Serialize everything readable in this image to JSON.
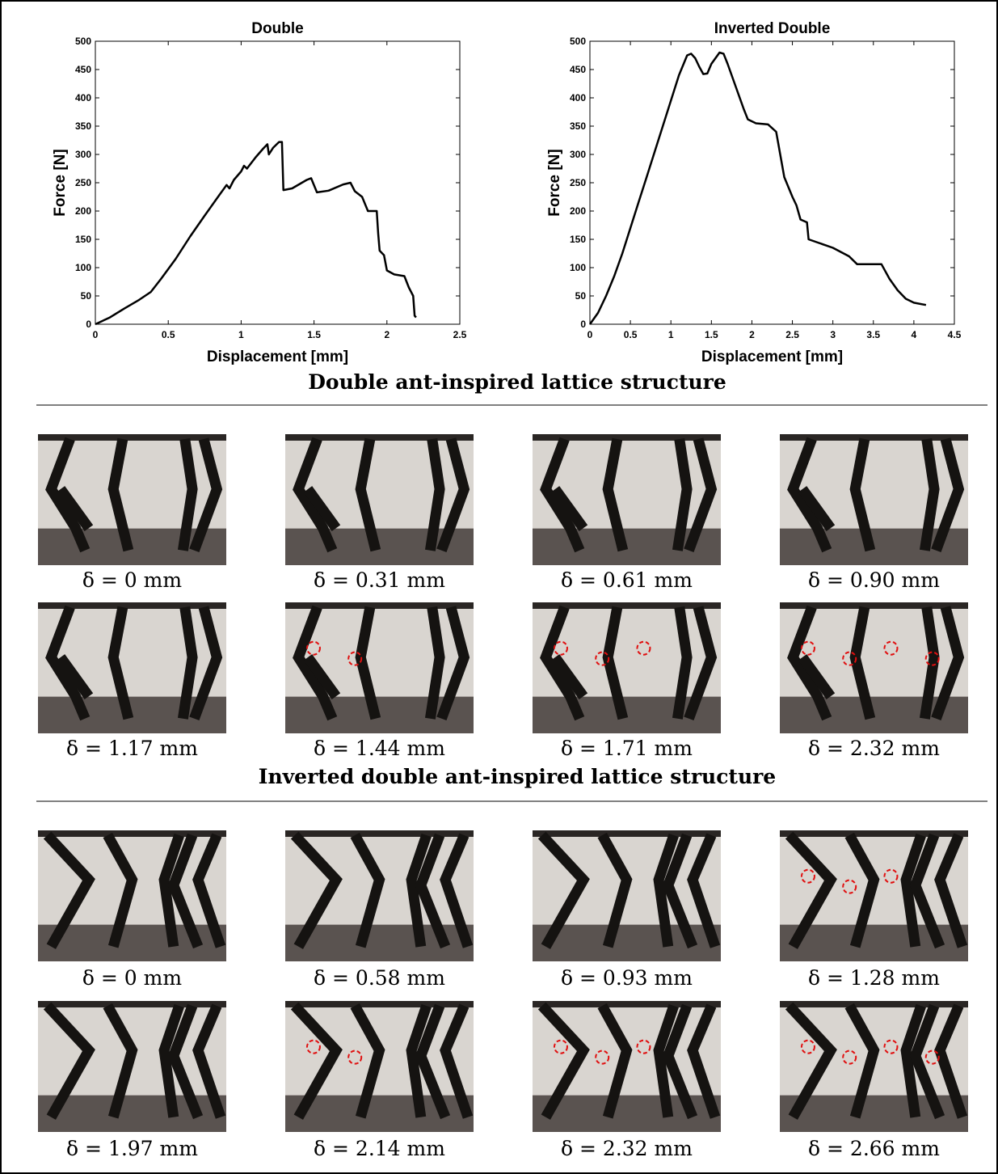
{
  "chart_data": [
    {
      "type": "line",
      "title": "Double",
      "xlabel": "Displacement [mm]",
      "ylabel": "Force [N]",
      "color": "#000000",
      "x": [
        0,
        0.1,
        0.2,
        0.3,
        0.38,
        0.45,
        0.55,
        0.65,
        0.75,
        0.85,
        0.9,
        0.92,
        0.95,
        1.0,
        1.02,
        1.04,
        1.1,
        1.15,
        1.18,
        1.19,
        1.22,
        1.26,
        1.28,
        1.29,
        1.35,
        1.45,
        1.48,
        1.52,
        1.6,
        1.7,
        1.75,
        1.78,
        1.83,
        1.87,
        1.93,
        1.94,
        1.95,
        1.98,
        2.0,
        2.05,
        2.12,
        2.15,
        2.18,
        2.19,
        2.2
      ],
      "values": [
        0,
        12,
        28,
        43,
        57,
        80,
        115,
        155,
        192,
        228,
        246,
        240,
        255,
        270,
        280,
        275,
        295,
        310,
        318,
        300,
        312,
        322,
        322,
        237,
        240,
        255,
        258,
        233,
        236,
        247,
        250,
        235,
        225,
        200,
        200,
        160,
        130,
        122,
        95,
        88,
        85,
        65,
        50,
        15,
        12
      ],
      "xlim": [
        0,
        2.5
      ],
      "xticks": [
        0,
        0.5,
        1,
        1.5,
        2,
        2.5
      ],
      "ylim": [
        0,
        500
      ],
      "yticks": [
        0,
        50,
        100,
        150,
        200,
        250,
        300,
        350,
        400,
        450,
        500
      ]
    },
    {
      "type": "line",
      "title": "Inverted Double",
      "xlabel": "Displacement [mm]",
      "ylabel": "Force [N]",
      "color": "#000000",
      "x": [
        0,
        0.1,
        0.2,
        0.3,
        0.4,
        0.5,
        0.6,
        0.7,
        0.8,
        0.9,
        1.0,
        1.1,
        1.2,
        1.25,
        1.3,
        1.35,
        1.4,
        1.45,
        1.5,
        1.6,
        1.65,
        1.7,
        1.8,
        1.9,
        1.95,
        2.05,
        2.2,
        2.3,
        2.35,
        2.4,
        2.5,
        2.55,
        2.6,
        2.68,
        2.7,
        2.8,
        3.0,
        3.2,
        3.3,
        3.6,
        3.7,
        3.8,
        3.9,
        4.0,
        4.15
      ],
      "values": [
        0,
        20,
        50,
        85,
        125,
        170,
        215,
        260,
        305,
        350,
        395,
        440,
        475,
        478,
        470,
        455,
        442,
        443,
        460,
        480,
        478,
        460,
        420,
        380,
        362,
        355,
        353,
        340,
        300,
        260,
        225,
        210,
        185,
        180,
        150,
        145,
        135,
        120,
        106,
        106,
        80,
        60,
        45,
        38,
        34
      ],
      "xlim": [
        0,
        4.5
      ],
      "xticks": [
        0,
        0.5,
        1,
        1.5,
        2,
        2.5,
        3,
        3.5,
        4,
        4.5
      ],
      "ylim": [
        0,
        500
      ],
      "yticks": [
        0,
        50,
        100,
        150,
        200,
        250,
        300,
        350,
        400,
        450,
        500
      ]
    }
  ],
  "sections": [
    {
      "title": "Double ant-inspired lattice structure",
      "captions": [
        "δ = 0 mm",
        "δ = 0.31 mm",
        "δ = 0.61 mm",
        "δ = 0.90 mm",
        "δ = 1.17 mm",
        "δ = 1.44 mm",
        "δ = 1.71 mm",
        "δ = 2.32 mm"
      ]
    },
    {
      "title": "Inverted double ant-inspired lattice structure",
      "captions": [
        "δ = 0 mm",
        "δ = 0.58 mm",
        "δ = 0.93 mm",
        "δ = 1.28 mm",
        "δ = 1.97 mm",
        "δ = 2.14 mm",
        "δ = 2.32 mm",
        "δ = 2.66 mm"
      ]
    }
  ]
}
